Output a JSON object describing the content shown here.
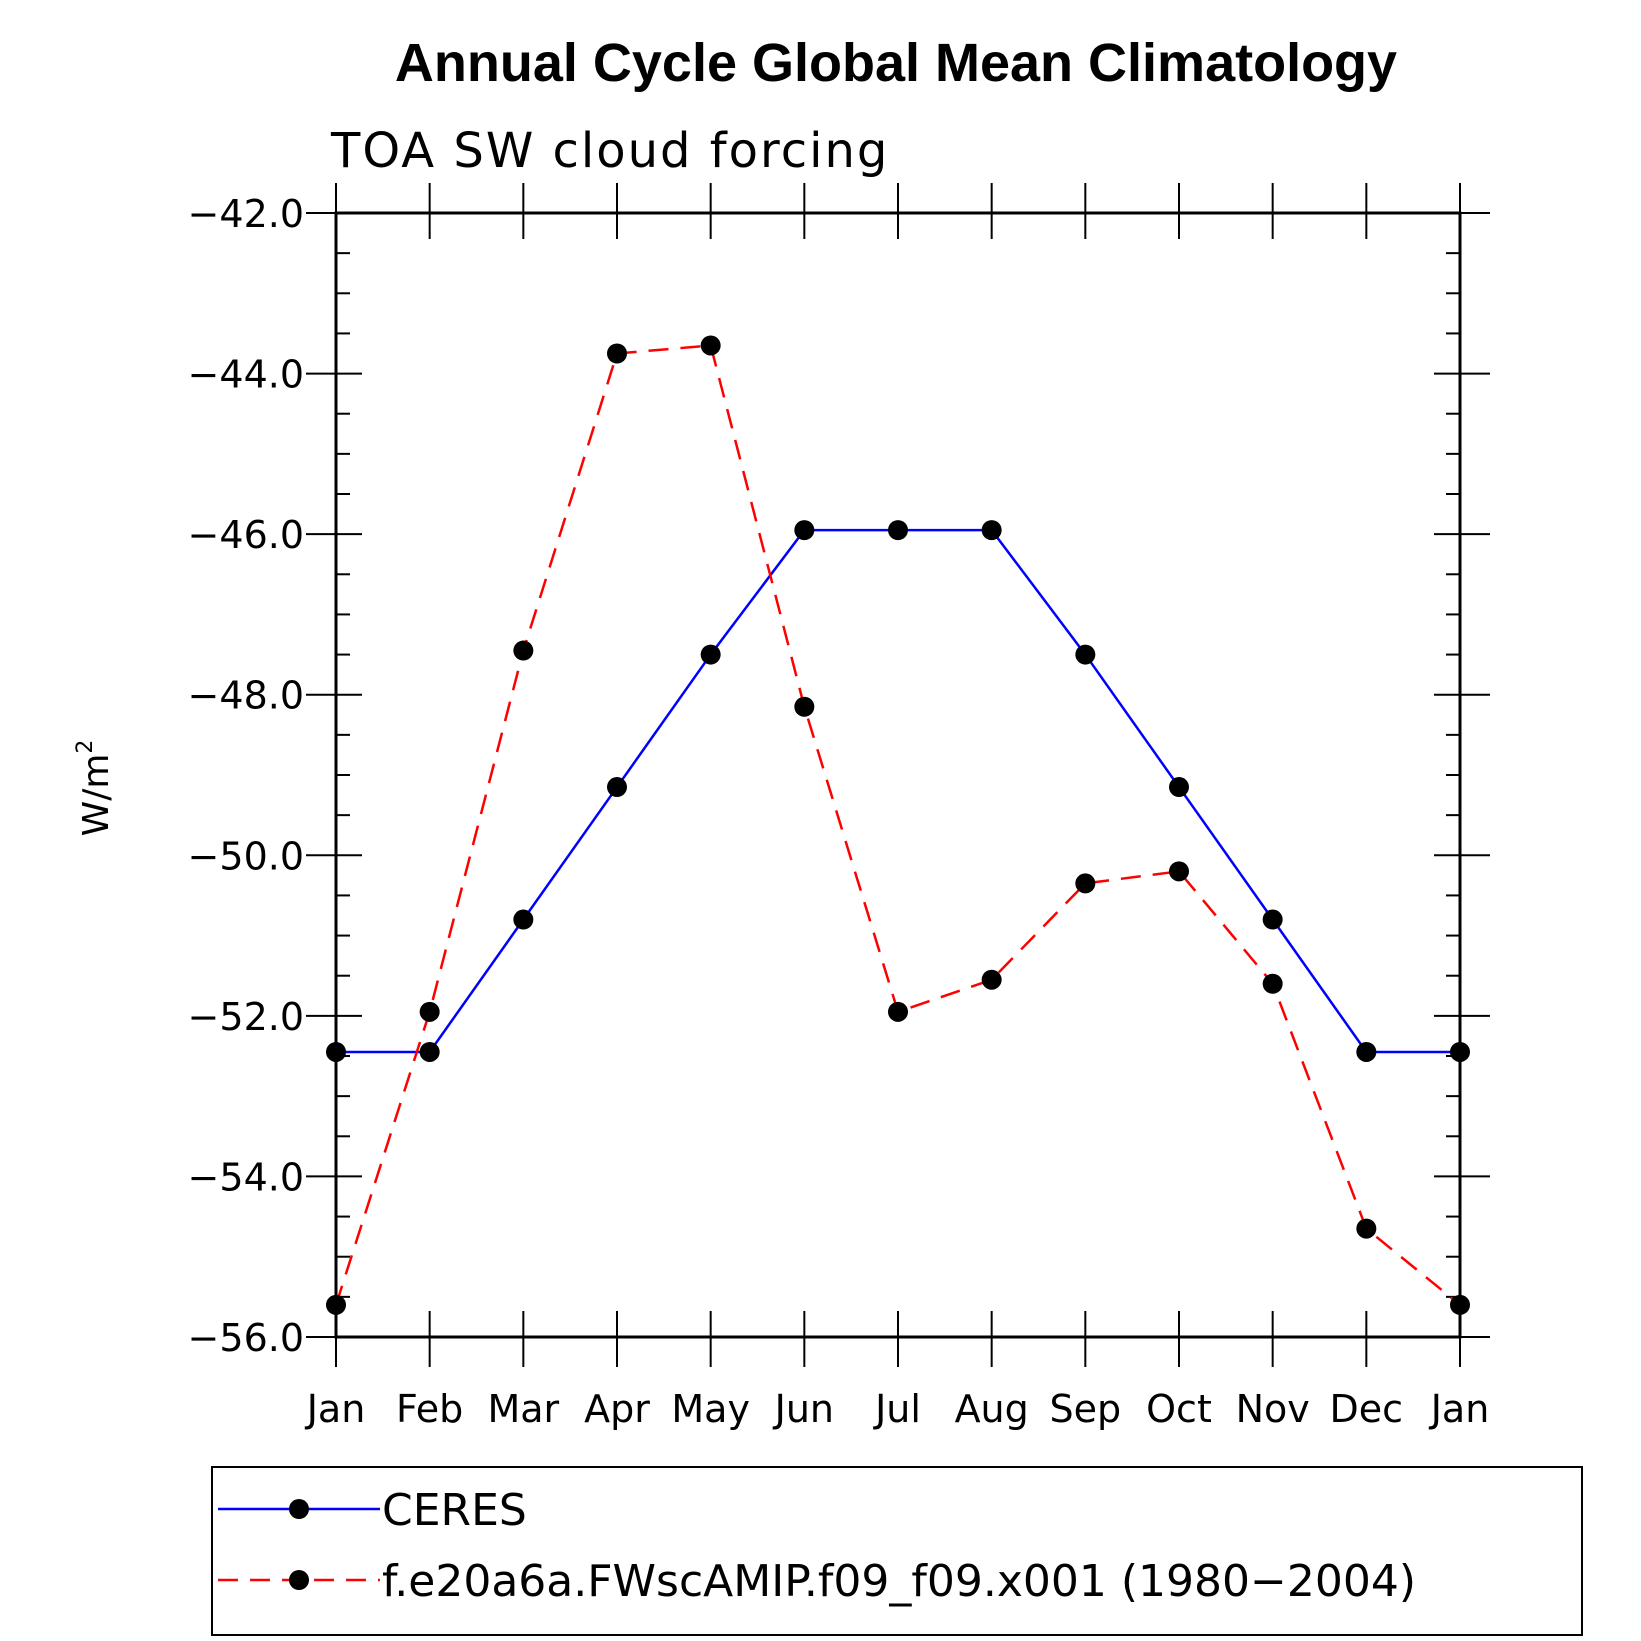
{
  "chart_data": {
    "type": "line",
    "title": "Annual Cycle Global Mean Climatology",
    "subtitle": "TOA SW cloud forcing",
    "ylabel": "W/m",
    "ylabel_sup": "2",
    "categories": [
      "Jan",
      "Feb",
      "Mar",
      "Apr",
      "May",
      "Jun",
      "Jul",
      "Aug",
      "Sep",
      "Oct",
      "Nov",
      "Dec",
      "Jan"
    ],
    "ylim": [
      -56,
      -42
    ],
    "yticks": [
      -42,
      -44,
      -46,
      -48,
      -50,
      -52,
      -54,
      -56
    ],
    "ytick_labels": [
      "−42.0",
      "−44.0",
      "−46.0",
      "−48.0",
      "−50.0",
      "−52.0",
      "−54.0",
      "−56.0"
    ],
    "legend_placement": "bottom",
    "series": [
      {
        "name": "CERES",
        "color": "#0000ff",
        "dash": "solid",
        "marker_color": "#000000",
        "values": [
          -52.45,
          -52.45,
          -50.8,
          -49.15,
          -47.5,
          -45.95,
          -45.95,
          -45.95,
          -47.5,
          -49.15,
          -50.8,
          -52.45,
          -52.45
        ]
      },
      {
        "name": "f.e20a6a.FWscAMIP.f09_f09.x001 (1980−2004)",
        "color": "#ff0000",
        "dash": "dashed",
        "marker_color": "#000000",
        "values": [
          -55.6,
          -51.95,
          -47.45,
          -43.75,
          -43.65,
          -48.15,
          -51.95,
          -51.55,
          -50.35,
          -50.2,
          -51.6,
          -54.65,
          -55.6
        ]
      }
    ]
  }
}
